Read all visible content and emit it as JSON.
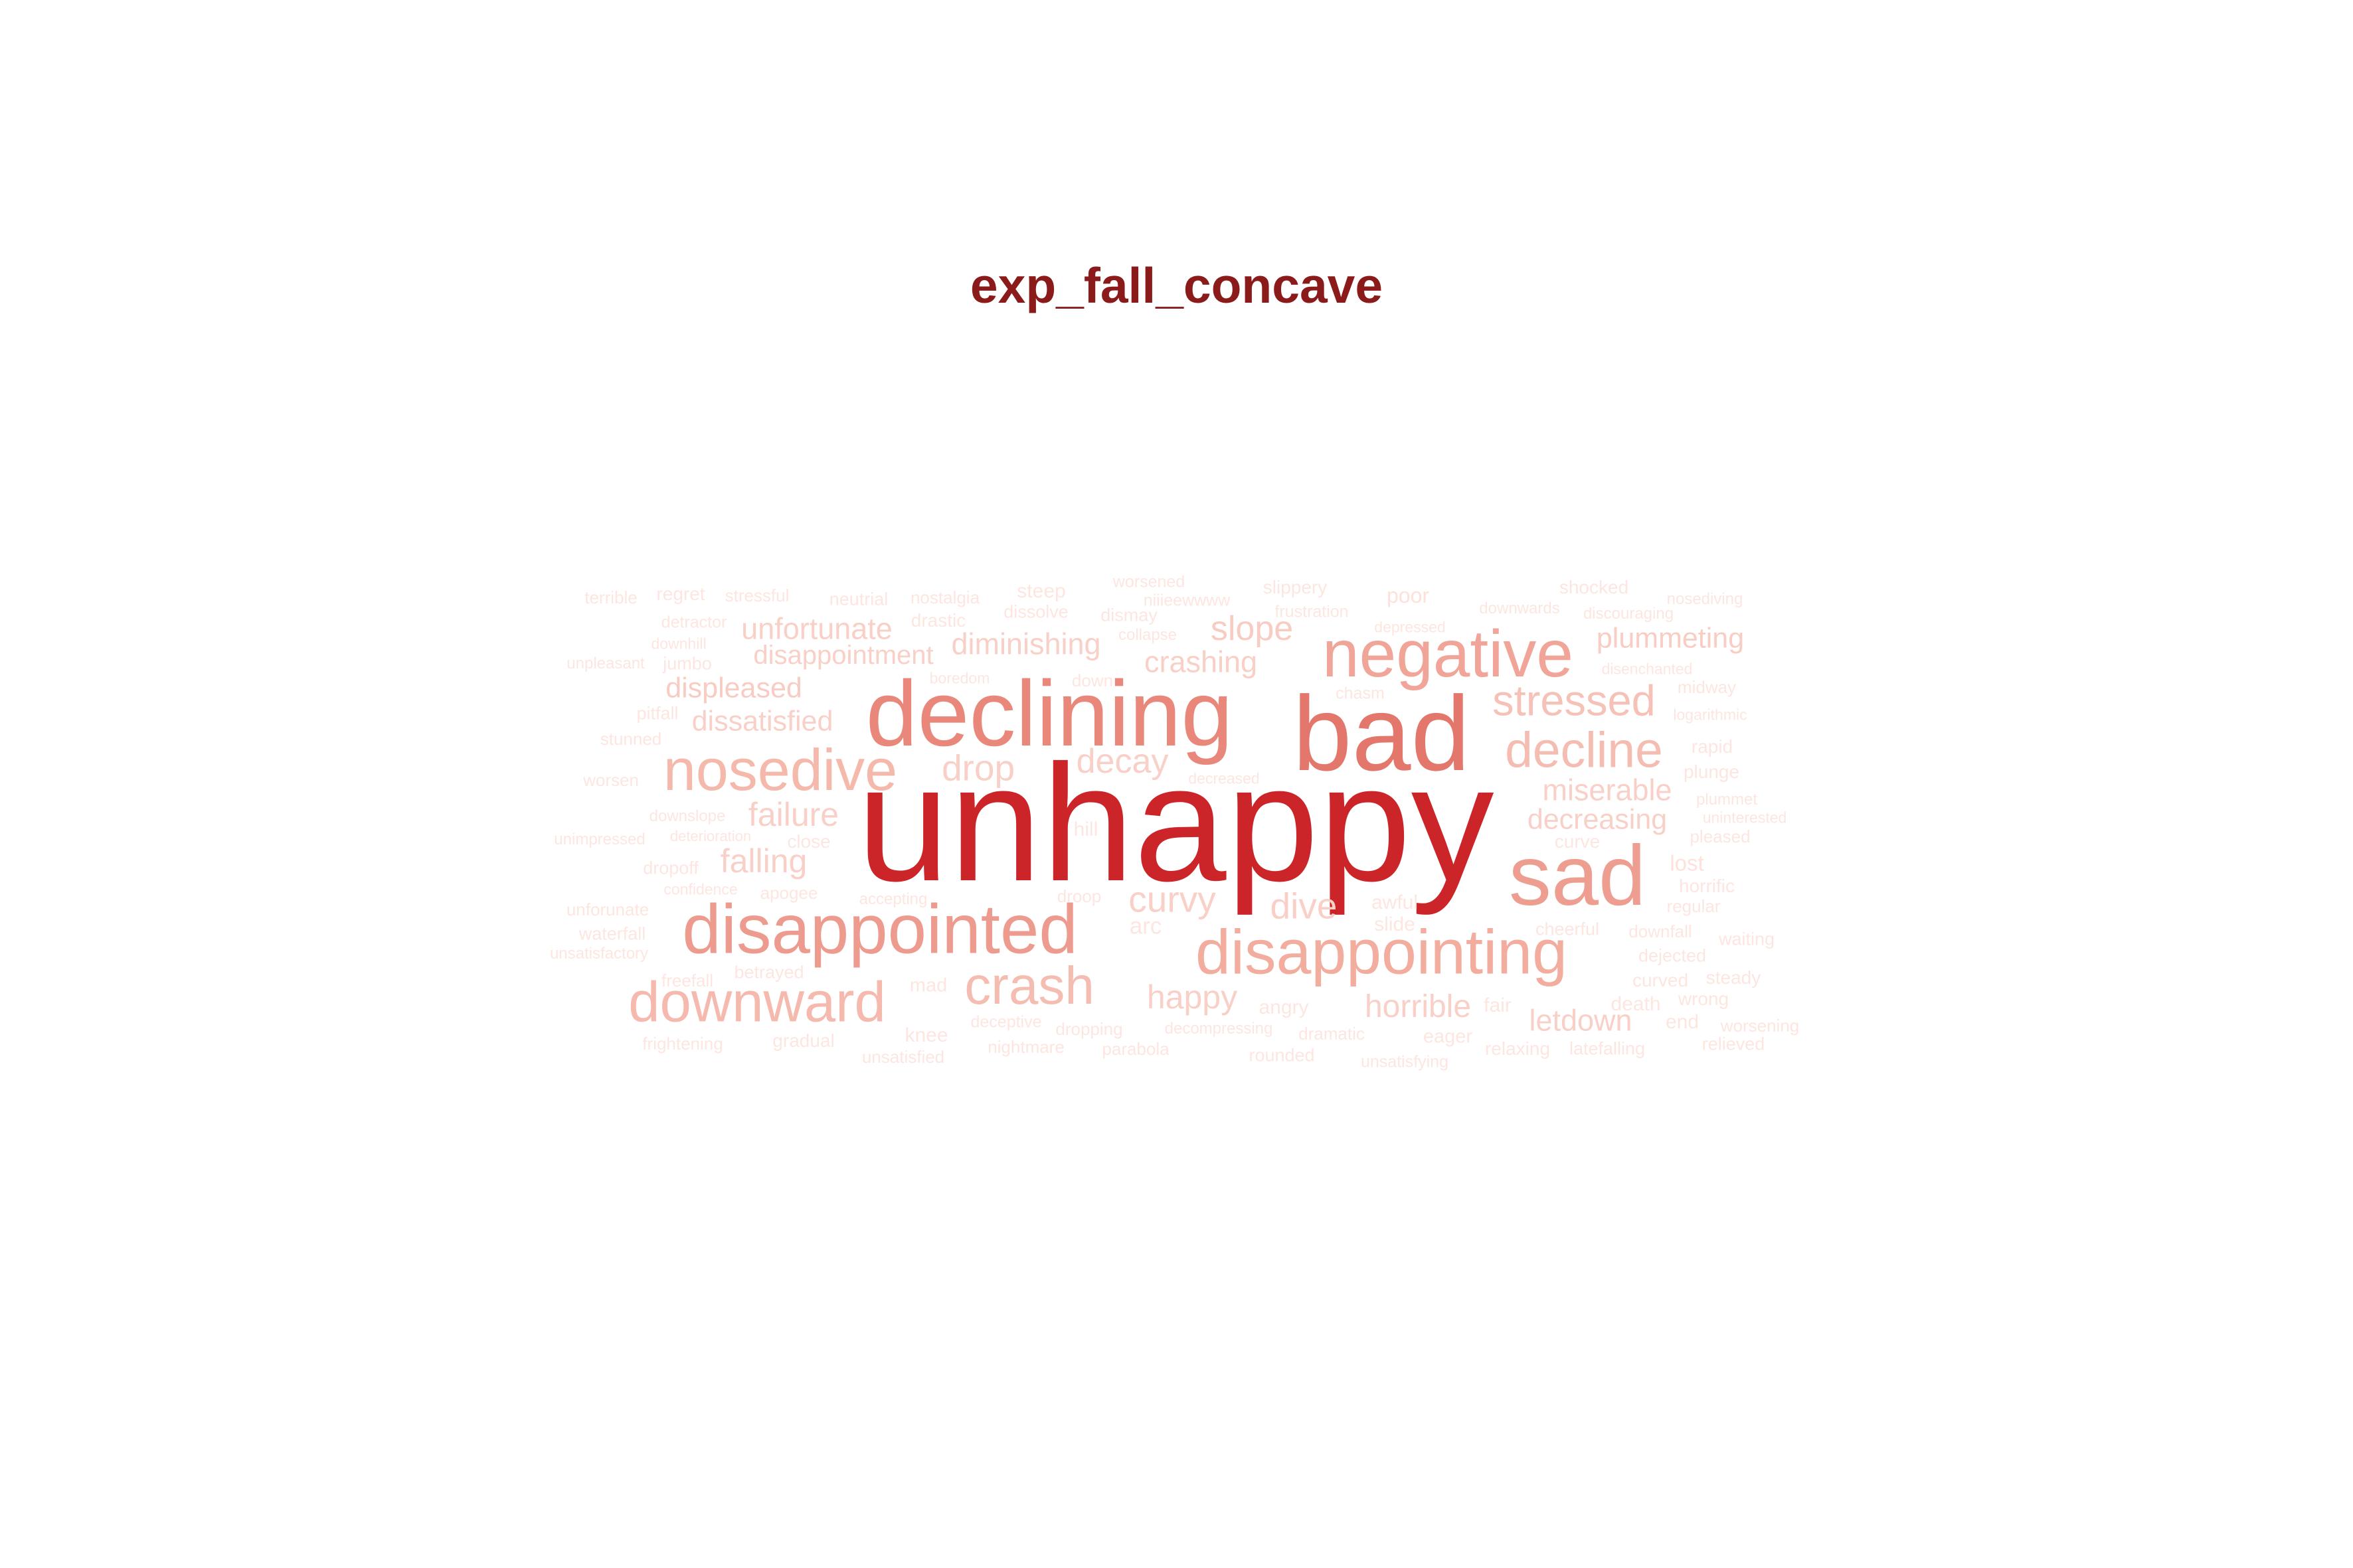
{
  "title": "exp_fall_concave",
  "colors": {
    "title": "#8b1a1a"
  },
  "words": [
    {
      "text": "unhappy",
      "color": "#cc2529"
    },
    {
      "text": "bad",
      "color": "#e4776b"
    },
    {
      "text": "declining",
      "color": "#e8877a"
    },
    {
      "text": "sad",
      "color": "#ee9e90"
    },
    {
      "text": "negative",
      "color": "#f0a598"
    },
    {
      "text": "disappointed",
      "color": "#ed9b8e"
    },
    {
      "text": "disappointing",
      "color": "#f2ad9f"
    },
    {
      "text": "nosedive",
      "color": "#f5b9ac"
    },
    {
      "text": "downward",
      "color": "#f5b9ad"
    },
    {
      "text": "decline",
      "color": "#f5bcb1"
    },
    {
      "text": "crash",
      "color": "#f5bcb1"
    },
    {
      "text": "stressed",
      "color": "#f6c1b6"
    },
    {
      "text": "plummeting",
      "color": "#f8cdc3"
    },
    {
      "text": "slope",
      "color": "#f8ccc2"
    },
    {
      "text": "unfortunate",
      "color": "#f9d0c7"
    },
    {
      "text": "diminishing",
      "color": "#f9d0c7"
    },
    {
      "text": "disappointment",
      "color": "#f9d0c7"
    },
    {
      "text": "crashing",
      "color": "#f9d0c7"
    },
    {
      "text": "displeased",
      "color": "#f8ccc2"
    },
    {
      "text": "dissatisfied",
      "color": "#f9d0c7"
    },
    {
      "text": "drop",
      "color": "#f9d0c7"
    },
    {
      "text": "decay",
      "color": "#f9d0c7"
    },
    {
      "text": "miserable",
      "color": "#f9d0c7"
    },
    {
      "text": "decreasing",
      "color": "#f9d0c7"
    },
    {
      "text": "failure",
      "color": "#f9d0c7"
    },
    {
      "text": "falling",
      "color": "#f9d0c7"
    },
    {
      "text": "curvy",
      "color": "#f9d0c7"
    },
    {
      "text": "dive",
      "color": "#f9d0c7"
    },
    {
      "text": "happy",
      "color": "#f9d0c7"
    },
    {
      "text": "horrible",
      "color": "#f9d0c7"
    },
    {
      "text": "letdown",
      "color": "#f9d0c7"
    },
    {
      "text": "terrible",
      "color": "#fde6e0"
    },
    {
      "text": "regret",
      "color": "#fde6e0"
    },
    {
      "text": "stressful",
      "color": "#fde6e0"
    },
    {
      "text": "neutrial",
      "color": "#fde6e0"
    },
    {
      "text": "nostalgia",
      "color": "#fde6e0"
    },
    {
      "text": "steep",
      "color": "#fde6e0"
    },
    {
      "text": "worsened",
      "color": "#fde6e0"
    },
    {
      "text": "slippery",
      "color": "#fde6e0"
    },
    {
      "text": "poor",
      "color": "#fde1da"
    },
    {
      "text": "shocked",
      "color": "#fde6e0"
    },
    {
      "text": "nosediving",
      "color": "#fde6e0"
    },
    {
      "text": "detractor",
      "color": "#fde6e0"
    },
    {
      "text": "drastic",
      "color": "#fde6e0"
    },
    {
      "text": "dissolve",
      "color": "#fde6e0"
    },
    {
      "text": "dismay",
      "color": "#fde6e0"
    },
    {
      "text": "niiieewwww",
      "color": "#fde6e0"
    },
    {
      "text": "frustration",
      "color": "#fde6e0"
    },
    {
      "text": "depressed",
      "color": "#fde6e0"
    },
    {
      "text": "downwards",
      "color": "#fde6e0"
    },
    {
      "text": "discouraging",
      "color": "#fde6e0"
    },
    {
      "text": "downhill",
      "color": "#fde6e0"
    },
    {
      "text": "collapse",
      "color": "#fde6e0"
    },
    {
      "text": "unpleasant",
      "color": "#fde6e0"
    },
    {
      "text": "jumbo",
      "color": "#fde6e0"
    },
    {
      "text": "disenchanted",
      "color": "#fde6e0"
    },
    {
      "text": "boredom",
      "color": "#fde6e0"
    },
    {
      "text": "down",
      "color": "#fde6e0"
    },
    {
      "text": "chasm",
      "color": "#fde6e0"
    },
    {
      "text": "midway",
      "color": "#fde6e0"
    },
    {
      "text": "pitfall",
      "color": "#fde6e0"
    },
    {
      "text": "logarithmic",
      "color": "#fde6e0"
    },
    {
      "text": "stunned",
      "color": "#fde6e0"
    },
    {
      "text": "rapid",
      "color": "#fde6e0"
    },
    {
      "text": "worsen",
      "color": "#fde6e0"
    },
    {
      "text": "decreased",
      "color": "#fde6e0"
    },
    {
      "text": "plunge",
      "color": "#fde6e0"
    },
    {
      "text": "plummet",
      "color": "#fde6e0"
    },
    {
      "text": "downslope",
      "color": "#fde6e0"
    },
    {
      "text": "uninterested",
      "color": "#fde6e0"
    },
    {
      "text": "unimpressed",
      "color": "#fde6e0"
    },
    {
      "text": "deterioration",
      "color": "#fde6e0"
    },
    {
      "text": "close",
      "color": "#fde6e0"
    },
    {
      "text": "curve",
      "color": "#fde6e0"
    },
    {
      "text": "pleased",
      "color": "#fde6e0"
    },
    {
      "text": "hill",
      "color": "#fde6e0"
    },
    {
      "text": "dropoff",
      "color": "#fde6e0"
    },
    {
      "text": "lost",
      "color": "#fde1da"
    },
    {
      "text": "horrific",
      "color": "#fde6e0"
    },
    {
      "text": "confidence",
      "color": "#fde6e0"
    },
    {
      "text": "apogee",
      "color": "#fde6e0"
    },
    {
      "text": "accepting",
      "color": "#fde6e0"
    },
    {
      "text": "droop",
      "color": "#fde6e0"
    },
    {
      "text": "awful",
      "color": "#fde6e0"
    },
    {
      "text": "regular",
      "color": "#fde6e0"
    },
    {
      "text": "unforunate",
      "color": "#fde6e0"
    },
    {
      "text": "slide",
      "color": "#fde6e0"
    },
    {
      "text": "waterfall",
      "color": "#fde6e0"
    },
    {
      "text": "arc",
      "color": "#fde6e0"
    },
    {
      "text": "cheerful",
      "color": "#fde6e0"
    },
    {
      "text": "downfall",
      "color": "#fde6e0"
    },
    {
      "text": "waiting",
      "color": "#fde6e0"
    },
    {
      "text": "unsatisfactory",
      "color": "#fde6e0"
    },
    {
      "text": "dejected",
      "color": "#fde6e0"
    },
    {
      "text": "freefall",
      "color": "#fde6e0"
    },
    {
      "text": "betrayed",
      "color": "#fde6e0"
    },
    {
      "text": "mad",
      "color": "#fde6e0"
    },
    {
      "text": "steady",
      "color": "#fde6e0"
    },
    {
      "text": "curved",
      "color": "#fde6e0"
    },
    {
      "text": "angry",
      "color": "#fde6e0"
    },
    {
      "text": "fair",
      "color": "#fde6e0"
    },
    {
      "text": "death",
      "color": "#fde6e0"
    },
    {
      "text": "wrong",
      "color": "#fde6e0"
    },
    {
      "text": "deceptive",
      "color": "#fde6e0"
    },
    {
      "text": "end",
      "color": "#fde6e0"
    },
    {
      "text": "worsening",
      "color": "#fde6e0"
    },
    {
      "text": "knee",
      "color": "#fde6e0"
    },
    {
      "text": "dropping",
      "color": "#fde6e0"
    },
    {
      "text": "decompressing",
      "color": "#fde6e0"
    },
    {
      "text": "dramatic",
      "color": "#fde6e0"
    },
    {
      "text": "eager",
      "color": "#fde6e0"
    },
    {
      "text": "frightening",
      "color": "#fde6e0"
    },
    {
      "text": "gradual",
      "color": "#fde6e0"
    },
    {
      "text": "nightmare",
      "color": "#fde6e0"
    },
    {
      "text": "parabola",
      "color": "#fde6e0"
    },
    {
      "text": "relaxing",
      "color": "#fde6e0"
    },
    {
      "text": "latefalling",
      "color": "#fde6e0"
    },
    {
      "text": "relieved",
      "color": "#fde6e0"
    },
    {
      "text": "rounded",
      "color": "#fde6e0"
    },
    {
      "text": "unsatisfied",
      "color": "#fde6e0"
    },
    {
      "text": "unsatisfying",
      "color": "#fde6e0"
    }
  ]
}
